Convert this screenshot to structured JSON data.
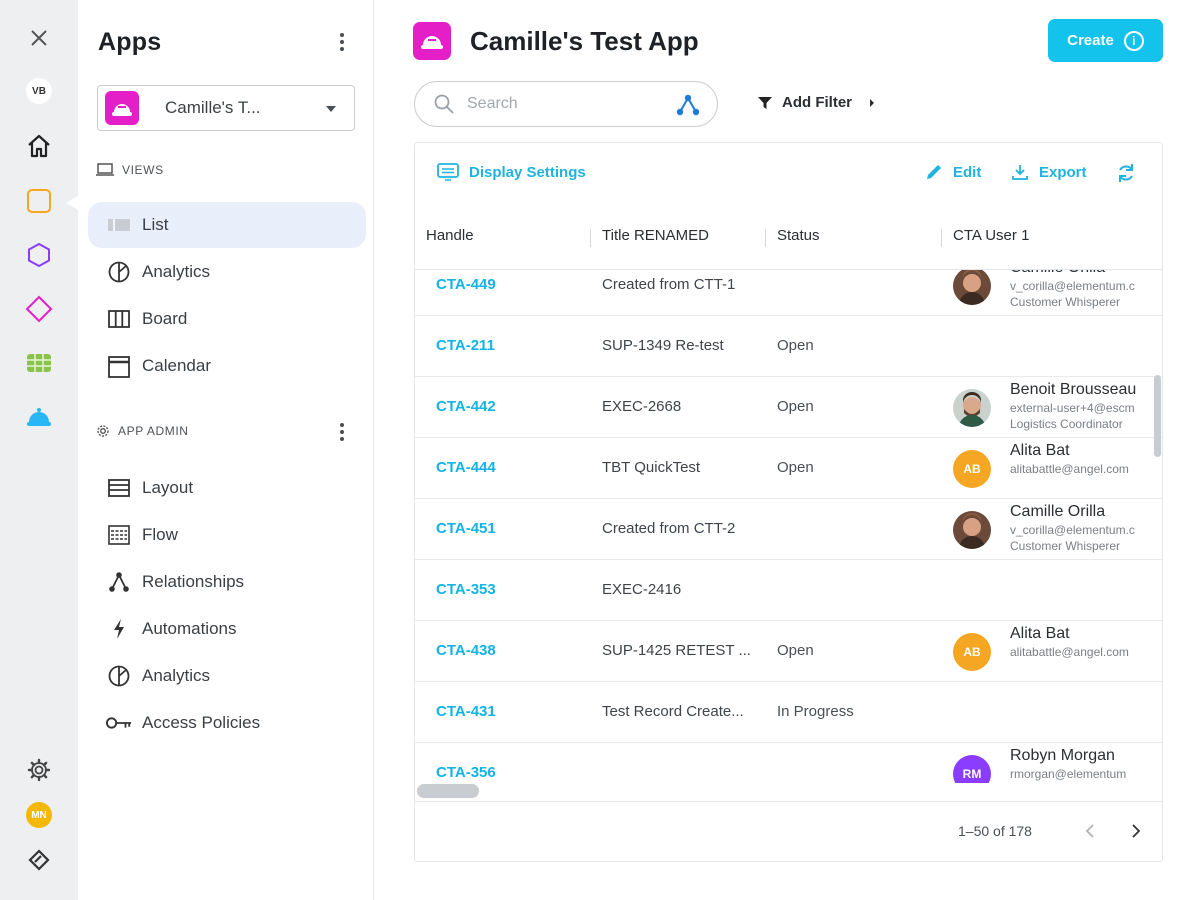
{
  "rail": {
    "close_label": "✕",
    "user_initials": "VB",
    "bottom_initials": "MN",
    "colors": {
      "orange": "#f5a623",
      "purple": "#8b3dff",
      "magenta": "#e41fc7",
      "green": "#8bc34a",
      "cyan": "#29b6f6"
    }
  },
  "sidebar": {
    "title": "Apps",
    "selected_app": "Camille's T...",
    "views_label": "VIEWS",
    "views": [
      {
        "label": "List",
        "icon": "list-icon",
        "active": true
      },
      {
        "label": "Analytics",
        "icon": "pie-chart-icon"
      },
      {
        "label": "Board",
        "icon": "board-icon"
      },
      {
        "label": "Calendar",
        "icon": "calendar-icon"
      }
    ],
    "admin_label": "APP ADMIN",
    "admin": [
      {
        "label": "Layout",
        "icon": "layout-icon"
      },
      {
        "label": "Flow",
        "icon": "flow-icon"
      },
      {
        "label": "Relationships",
        "icon": "relationships-icon"
      },
      {
        "label": "Automations",
        "icon": "bolt-icon"
      },
      {
        "label": "Analytics",
        "icon": "pie-chart-icon"
      },
      {
        "label": "Access Policies",
        "icon": "key-icon"
      }
    ]
  },
  "header": {
    "title": "Camille's Test App",
    "create_label": "Create",
    "create_info": "i",
    "accent": "#13c3ec",
    "app_color": "#e41fc7"
  },
  "search": {
    "placeholder": "Search",
    "value": ""
  },
  "filter": {
    "add_label": "Add Filter"
  },
  "toolbar": {
    "display_settings": "Display Settings",
    "edit": "Edit",
    "export": "Export"
  },
  "table": {
    "columns": [
      "Handle",
      "Title RENAMED",
      "Status",
      "CTA User 1"
    ],
    "rows": [
      {
        "handle": "CTA-449",
        "title": "Created from CTT-1",
        "status": "",
        "user": {
          "name": "Camille Orilla",
          "email": "v_corilla@elementum.c",
          "role": "Customer Whisperer",
          "avatar": "photo",
          "initials": ""
        }
      },
      {
        "handle": "CTA-211",
        "title": "SUP-1349 Re-test",
        "status": "Open",
        "user": null
      },
      {
        "handle": "CTA-442",
        "title": "EXEC-2668",
        "status": "Open",
        "user": {
          "name": "Benoit Brousseau",
          "email": "external-user+4@escm",
          "role": "Logistics Coordinator",
          "avatar": "photo2",
          "initials": ""
        }
      },
      {
        "handle": "CTA-444",
        "title": "TBT QuickTest",
        "status": "Open",
        "user": {
          "name": "Alita Bat",
          "email": "alitabattle@angel.com",
          "role": "",
          "avatar": "initials",
          "initials": "AB"
        }
      },
      {
        "handle": "CTA-451",
        "title": "Created from CTT-2",
        "status": "",
        "user": {
          "name": "Camille Orilla",
          "email": "v_corilla@elementum.c",
          "role": "Customer Whisperer",
          "avatar": "photo",
          "initials": ""
        }
      },
      {
        "handle": "CTA-353",
        "title": "EXEC-2416",
        "status": "",
        "user": null
      },
      {
        "handle": "CTA-438",
        "title": "SUP-1425 RETEST ...",
        "status": "Open",
        "user": {
          "name": "Alita Bat",
          "email": "alitabattle@angel.com",
          "role": "",
          "avatar": "initials",
          "initials": "AB"
        }
      },
      {
        "handle": "CTA-431",
        "title": "Test Record Create...",
        "status": "In Progress",
        "user": null
      },
      {
        "handle": "CTA-356",
        "title": "",
        "status": "",
        "user": {
          "name": "Robyn Morgan",
          "email": "rmorgan@elementum",
          "role": "",
          "avatar": "initials-purple",
          "initials": "RM"
        }
      }
    ]
  },
  "pagination": {
    "range": "1–50 of 178"
  }
}
